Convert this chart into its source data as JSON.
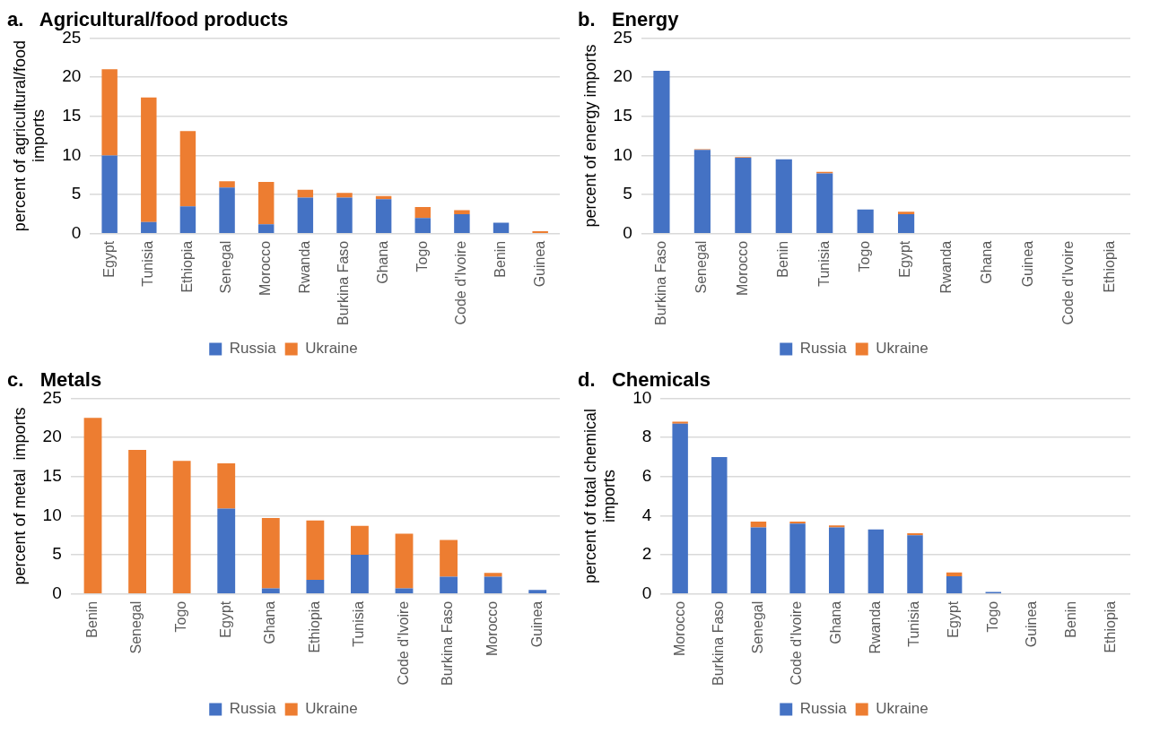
{
  "chart_data": [
    {
      "type": "bar",
      "title": "a.   Agricultural/food products",
      "ylabel": "percent of agricultural/food imports",
      "categories": [
        "Egypt",
        "Tunisia",
        "Ethiopia",
        "Senegal",
        "Morocco",
        "Rwanda",
        "Burkina Faso",
        "Ghana",
        "Togo",
        "Code d'Ivoire",
        "Benin",
        "Guinea"
      ],
      "stacked": true,
      "ylim": [
        0,
        25
      ],
      "yticks": [
        0,
        5,
        10,
        15,
        20,
        25
      ],
      "grid": "y",
      "legend": "bottom",
      "series": [
        {
          "name": "Russia",
          "color": "#4472c4",
          "values": [
            10.0,
            1.5,
            3.5,
            5.9,
            1.2,
            4.6,
            4.6,
            4.4,
            2.0,
            2.5,
            1.4,
            0
          ]
        },
        {
          "name": "Ukraine",
          "color": "#ed7d31",
          "values": [
            11.0,
            15.9,
            9.6,
            0.8,
            5.4,
            1.0,
            0.6,
            0.4,
            1.4,
            0.5,
            null,
            0.3
          ]
        }
      ]
    },
    {
      "type": "bar",
      "title": "b.   Energy",
      "ylabel": "percent of energy imports",
      "categories": [
        "Burkina Faso",
        "Senegal",
        "Morocco",
        "Benin",
        "Tunisia",
        "Togo",
        "Egypt",
        "Rwanda",
        "Ghana",
        "Guinea",
        "Code d'Ivoire",
        "Ethiopia"
      ],
      "stacked": true,
      "ylim": [
        0,
        25
      ],
      "yticks": [
        0,
        5,
        10,
        15,
        20,
        25
      ],
      "grid": "y",
      "legend": "bottom",
      "series": [
        {
          "name": "Russia",
          "color": "#4472c4",
          "values": [
            20.8,
            10.7,
            9.7,
            9.5,
            7.7,
            3.1,
            2.5,
            0,
            0,
            0,
            0,
            0
          ]
        },
        {
          "name": "Ukraine",
          "color": "#ed7d31",
          "values": [
            0,
            0.1,
            0.1,
            0,
            0.2,
            0,
            0.3,
            0,
            0,
            0,
            0,
            0
          ]
        }
      ]
    },
    {
      "type": "bar",
      "title": "c.   Metals",
      "ylabel": "percent of metal  imports",
      "categories": [
        "Benin",
        "Senegal",
        "Togo",
        "Egypt",
        "Ghana",
        "Ethiopia",
        "Tunisia",
        "Code d'Ivoire",
        "Burkina Faso",
        "Morocco",
        "Guinea"
      ],
      "stacked": true,
      "ylim": [
        0,
        25
      ],
      "yticks": [
        0,
        5,
        10,
        15,
        20,
        25
      ],
      "grid": "y",
      "legend": "bottom",
      "series": [
        {
          "name": "Russia",
          "color": "#4472c4",
          "values": [
            0,
            0,
            0,
            10.9,
            0.7,
            1.8,
            5.0,
            0.7,
            2.2,
            2.2,
            0.5
          ]
        },
        {
          "name": "Ukraine",
          "color": "#ed7d31",
          "values": [
            22.5,
            18.4,
            17.0,
            5.8,
            9.0,
            7.6,
            3.7,
            7.0,
            4.7,
            0.5,
            0
          ]
        }
      ]
    },
    {
      "type": "bar",
      "title": "d.   Chemicals",
      "ylabel": "percent of total chemical imports",
      "categories": [
        "Morocco",
        "Burkina Faso",
        "Senegal",
        "Code d'Ivoire",
        "Ghana",
        "Rwanda",
        "Tunisia",
        "Egypt",
        "Togo",
        "Guinea",
        "Benin",
        "Ethiopia"
      ],
      "stacked": true,
      "ylim": [
        0,
        10
      ],
      "yticks": [
        0,
        2,
        4,
        6,
        8,
        10
      ],
      "grid": "y",
      "legend": "bottom",
      "series": [
        {
          "name": "Russia",
          "color": "#4472c4",
          "values": [
            8.7,
            7.0,
            3.4,
            3.6,
            3.4,
            3.3,
            3.0,
            0.9,
            0.1,
            null,
            0,
            0
          ]
        },
        {
          "name": "Ukraine",
          "color": "#ed7d31",
          "values": [
            0.1,
            0,
            0.3,
            0.1,
            0.1,
            0,
            0.1,
            0.2,
            0,
            0,
            null,
            0
          ]
        }
      ]
    }
  ]
}
